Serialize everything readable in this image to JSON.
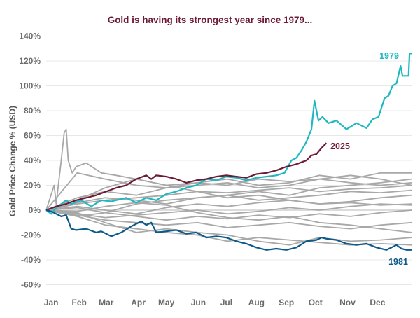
{
  "chart_data": {
    "type": "line",
    "title": "Gold is having its strongest year since 1979...",
    "xlabel": "",
    "ylabel": "Gold Price Change % (USD)",
    "xlim": [
      0,
      365
    ],
    "ylim": [
      -60,
      140
    ],
    "yticks": [
      140,
      120,
      100,
      80,
      60,
      40,
      20,
      0,
      -20,
      -40,
      -60
    ],
    "ytick_labels": [
      "140%",
      "120%",
      "100%",
      "80%",
      "60%",
      "40%",
      "20%",
      "0%",
      "-20%",
      "-40%",
      "-60%"
    ],
    "xtick_labels": [
      "Jan",
      "Feb",
      "Mar",
      "Apr",
      "May",
      "Jun",
      "Jul",
      "Aug",
      "Sep",
      "Oct",
      "Nov",
      "Dec"
    ],
    "xtick_days": [
      5,
      33,
      60,
      92,
      120,
      152,
      180,
      210,
      240,
      269,
      301,
      331
    ],
    "grid": true,
    "colors": {
      "title": "#6d1a36",
      "grid": "#e8e8e8",
      "other": "#a8a8a8"
    },
    "highlight_series": [
      {
        "name": "1979",
        "label": "1979",
        "color": "#1fb8c0",
        "x": [
          0,
          5,
          10,
          15,
          20,
          25,
          35,
          45,
          55,
          65,
          80,
          90,
          100,
          110,
          120,
          130,
          140,
          150,
          160,
          170,
          180,
          190,
          200,
          210,
          220,
          230,
          238,
          245,
          250,
          255,
          260,
          265,
          268,
          272,
          276,
          282,
          290,
          300,
          310,
          320,
          326,
          332,
          338,
          342,
          346,
          350,
          354,
          356,
          362,
          363,
          365
        ],
        "y": [
          0,
          -3,
          2,
          5,
          8,
          5,
          8,
          3,
          8,
          7,
          10,
          6,
          10,
          8,
          13,
          15,
          18,
          20,
          25,
          24,
          27,
          26,
          24,
          26,
          27,
          28,
          30,
          40,
          42,
          48,
          55,
          65,
          88,
          72,
          75,
          70,
          72,
          65,
          70,
          66,
          73,
          75,
          90,
          92,
          100,
          102,
          116,
          108,
          108,
          126,
          126
        ]
      },
      {
        "name": "2025",
        "label": "2025",
        "color": "#6d1a36",
        "x": [
          0,
          10,
          20,
          30,
          40,
          50,
          60,
          70,
          80,
          90,
          100,
          105,
          110,
          120,
          130,
          140,
          150,
          160,
          170,
          180,
          190,
          200,
          210,
          220,
          230,
          240,
          250,
          260,
          265,
          270,
          275,
          280
        ],
        "y": [
          0,
          3,
          5,
          8,
          10,
          12,
          15,
          18,
          20,
          25,
          28,
          25,
          28,
          27,
          25,
          22,
          24,
          25,
          27,
          28,
          27,
          26,
          29,
          30,
          32,
          35,
          37,
          40,
          44,
          45,
          50,
          54
        ]
      },
      {
        "name": "1981",
        "label": "1981",
        "color": "#0b5a8a",
        "x": [
          0,
          5,
          10,
          15,
          20,
          25,
          30,
          40,
          50,
          55,
          65,
          75,
          85,
          95,
          100,
          105,
          110,
          120,
          130,
          140,
          150,
          160,
          170,
          180,
          190,
          200,
          210,
          220,
          230,
          240,
          250,
          260,
          270,
          275,
          280,
          290,
          300,
          310,
          320,
          330,
          340,
          345,
          350,
          355,
          360,
          365
        ],
        "y": [
          0,
          -1,
          -3,
          -5,
          -4,
          -15,
          -16,
          -15,
          -18,
          -17,
          -21,
          -18,
          -13,
          -9,
          -12,
          -10,
          -18,
          -17,
          -16,
          -19,
          -18,
          -22,
          -21,
          -22,
          -25,
          -27,
          -30,
          -32,
          -31,
          -32,
          -30,
          -25,
          -24,
          -22,
          -23,
          -24,
          -27,
          -28,
          -27,
          -30,
          -32,
          -30,
          -28,
          -31,
          -32,
          -32
        ]
      }
    ],
    "other_years_series": [
      {
        "x": [
          0,
          31,
          59,
          90,
          120,
          151,
          181,
          212,
          243,
          273,
          304,
          334,
          365
        ],
        "y": [
          0,
          30,
          25,
          20,
          18,
          22,
          25,
          20,
          22,
          28,
          25,
          30,
          30
        ]
      },
      {
        "x": [
          0,
          31,
          59,
          90,
          120,
          151,
          181,
          212,
          243,
          273,
          304,
          334,
          365
        ],
        "y": [
          0,
          10,
          15,
          12,
          18,
          20,
          22,
          18,
          20,
          25,
          22,
          20,
          22
        ]
      },
      {
        "x": [
          0,
          31,
          59,
          90,
          120,
          151,
          181,
          212,
          243,
          273,
          304,
          334,
          365
        ],
        "y": [
          0,
          5,
          8,
          10,
          12,
          15,
          14,
          16,
          18,
          15,
          17,
          18,
          20
        ]
      },
      {
        "x": [
          0,
          31,
          59,
          90,
          120,
          151,
          181,
          212,
          243,
          273,
          304,
          334,
          365
        ],
        "y": [
          0,
          -5,
          -2,
          5,
          8,
          10,
          12,
          8,
          10,
          12,
          15,
          14,
          16
        ]
      },
      {
        "x": [
          0,
          31,
          59,
          90,
          120,
          151,
          181,
          212,
          243,
          273,
          304,
          334,
          365
        ],
        "y": [
          0,
          3,
          0,
          -3,
          2,
          5,
          3,
          6,
          8,
          5,
          7,
          10,
          12
        ]
      },
      {
        "x": [
          0,
          31,
          59,
          90,
          120,
          151,
          181,
          212,
          243,
          273,
          304,
          334,
          365
        ],
        "y": [
          0,
          -3,
          -6,
          -4,
          -2,
          0,
          -3,
          -1,
          2,
          0,
          3,
          5,
          4
        ]
      },
      {
        "x": [
          0,
          31,
          59,
          90,
          120,
          151,
          181,
          212,
          243,
          273,
          304,
          334,
          365
        ],
        "y": [
          0,
          2,
          -2,
          -5,
          -8,
          -5,
          -7,
          -4,
          -6,
          -3,
          -5,
          -2,
          0
        ]
      },
      {
        "x": [
          0,
          31,
          59,
          90,
          120,
          151,
          181,
          212,
          243,
          273,
          304,
          334,
          365
        ],
        "y": [
          0,
          -4,
          -8,
          -10,
          -12,
          -10,
          -14,
          -12,
          -10,
          -13,
          -15,
          -12,
          -10
        ]
      },
      {
        "x": [
          0,
          31,
          59,
          90,
          120,
          151,
          181,
          212,
          243,
          273,
          304,
          334,
          365
        ],
        "y": [
          0,
          -2,
          -10,
          -18,
          -15,
          -18,
          -20,
          -25,
          -28,
          -22,
          -25,
          -24,
          -22
        ]
      },
      {
        "x": [
          0,
          31,
          59,
          90,
          120,
          151,
          181,
          212,
          243,
          273,
          304,
          334,
          365
        ],
        "y": [
          0,
          -5,
          -12,
          -15,
          -18,
          -20,
          -25,
          -22,
          -24,
          -26,
          -28,
          -27,
          -28
        ]
      },
      {
        "x": [
          0,
          31,
          59,
          90,
          120,
          151,
          181,
          212,
          243,
          273,
          304,
          334,
          365
        ],
        "y": [
          0,
          6,
          10,
          8,
          5,
          10,
          12,
          15,
          12,
          18,
          20,
          22,
          25
        ]
      },
      {
        "x": [
          0,
          31,
          59,
          90,
          120,
          151,
          181,
          212,
          243,
          273,
          304,
          334,
          365
        ],
        "y": [
          0,
          8,
          18,
          25,
          20,
          22,
          20,
          25,
          23,
          25,
          28,
          25,
          20
        ]
      },
      {
        "x": [
          0,
          31,
          59,
          90,
          120,
          151,
          181,
          212,
          243,
          273,
          304,
          334,
          365
        ],
        "y": [
          0,
          -1,
          3,
          6,
          4,
          -2,
          -6,
          -8,
          -5,
          -10,
          -12,
          -15,
          -18
        ]
      },
      {
        "x": [
          0,
          8,
          10,
          15,
          18,
          20,
          22,
          26,
          30,
          40,
          55,
          70,
          90,
          120,
          151,
          181,
          212,
          243,
          273,
          304,
          334,
          365
        ],
        "y": [
          0,
          20,
          5,
          40,
          62,
          65,
          40,
          30,
          35,
          38,
          30,
          28,
          25,
          20,
          15,
          10,
          12,
          8,
          5,
          6,
          4,
          5
        ]
      }
    ]
  }
}
